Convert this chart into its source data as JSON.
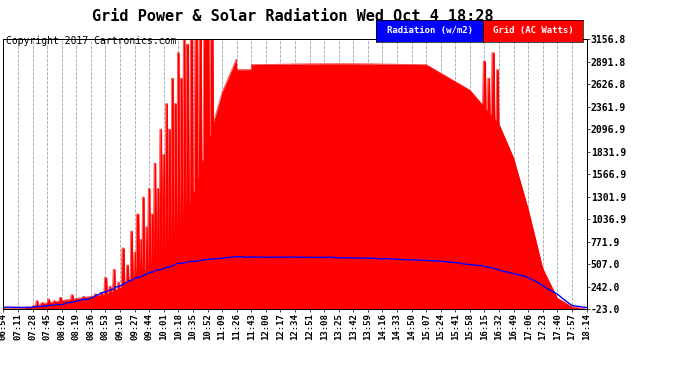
{
  "title": "Grid Power & Solar Radiation Wed Oct 4 18:28",
  "copyright": "Copyright 2017 Cartronics.com",
  "legend_radiation": "Radiation (w/m2)",
  "legend_grid": "Grid (AC Watts)",
  "radiation_color": "#0000ff",
  "grid_color": "#ff0000",
  "background_color": "#ffffff",
  "grid_line_color": "#999999",
  "yticks": [
    -23.0,
    242.0,
    507.0,
    771.9,
    1036.9,
    1301.9,
    1566.9,
    1831.9,
    2096.9,
    2361.9,
    2626.8,
    2891.8,
    3156.8
  ],
  "ylim": [
    -23.0,
    3156.8
  ],
  "xtick_labels": [
    "06:54",
    "07:11",
    "07:28",
    "07:45",
    "08:02",
    "08:19",
    "08:36",
    "08:53",
    "09:10",
    "09:27",
    "09:44",
    "10:01",
    "10:18",
    "10:35",
    "10:52",
    "11:09",
    "11:26",
    "11:43",
    "12:00",
    "12:17",
    "12:34",
    "12:51",
    "13:08",
    "13:25",
    "13:42",
    "13:59",
    "14:16",
    "14:33",
    "14:50",
    "15:07",
    "15:24",
    "15:41",
    "15:58",
    "16:15",
    "16:32",
    "16:49",
    "17:06",
    "17:23",
    "17:40",
    "17:57",
    "18:14"
  ],
  "title_fontsize": 11,
  "axis_fontsize": 6.5,
  "copyright_fontsize": 7,
  "ytick_labels": [
    "-23.0",
    "242.0",
    "507.0",
    "771.9",
    "1036.9",
    "1301.9",
    "1566.9",
    "1831.9",
    "2096.9",
    "2361.9",
    "2626.8",
    "2891.8",
    "3156.8"
  ]
}
